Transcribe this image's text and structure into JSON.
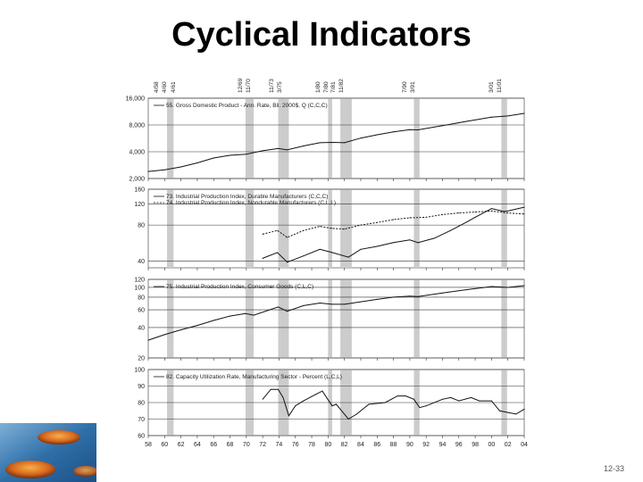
{
  "slide": {
    "title": "Cyclical Indicators",
    "number": "12-33"
  },
  "colors": {
    "recession_shade": "#cccccc",
    "line": "#111111",
    "grid": "#333333",
    "panel_bg": "#ffffff"
  },
  "recession_labels": [
    {
      "peak": "4/58",
      "trough": ""
    },
    {
      "peak": "4/60",
      "trough": "4/61"
    },
    {
      "peak": "12/69",
      "trough": "11/70"
    },
    {
      "peak": "11/73",
      "trough": "3/75"
    },
    {
      "peak": "1/80",
      "trough": "7/80"
    },
    {
      "peak": "7/81",
      "trough": "11/82"
    },
    {
      "peak": "7/90",
      "trough": "3/91"
    },
    {
      "peak": "3/01",
      "trough": "11/01"
    }
  ],
  "chart_data": [
    {
      "type": "line",
      "title": "55. Gross Domestic Product - Ann. Rate, Bil. 2000$, Q (C,C,C)",
      "y_scale": "log",
      "ylim": [
        2000,
        16000
      ],
      "yticks": [
        "16,000",
        "8,000",
        "4,000",
        "2,000"
      ],
      "ytick_values": [
        16000,
        8000,
        4000,
        2000
      ],
      "xlim": [
        1958,
        2004
      ],
      "recessions": [
        [
          1960.3,
          1961.1
        ],
        [
          1969.9,
          1970.9
        ],
        [
          1973.9,
          1975.2
        ],
        [
          1980.0,
          1980.5
        ],
        [
          1981.5,
          1982.9
        ],
        [
          1990.5,
          1991.2
        ],
        [
          2001.2,
          2001.9
        ]
      ],
      "series": [
        {
          "name": "55. Gross Domestic Product - Ann. Rate, Bil. 2000$, Q (C,C,C)",
          "x": [
            1958,
            1960,
            1962,
            1964,
            1966,
            1968,
            1970,
            1972,
            1973.9,
            1975,
            1977,
            1979,
            1980.5,
            1982,
            1984,
            1986,
            1988,
            1990,
            1991,
            1994,
            1997,
            2000,
            2002,
            2004
          ],
          "y": [
            2400,
            2500,
            2700,
            3000,
            3400,
            3650,
            3750,
            4100,
            4350,
            4200,
            4650,
            5050,
            5100,
            5050,
            5700,
            6200,
            6700,
            7100,
            7050,
            7850,
            8800,
            9800,
            10100,
            10800
          ]
        }
      ]
    },
    {
      "type": "line",
      "title": "Industrial Production Index, Durable / Nondurable Manufacturers",
      "y_scale": "log",
      "ylim": [
        35,
        160
      ],
      "yticks": [
        "160",
        "120",
        "80",
        "40"
      ],
      "ytick_values": [
        160,
        120,
        80,
        40
      ],
      "xlim": [
        1958,
        2004
      ],
      "recessions": [
        [
          1960.3,
          1961.1
        ],
        [
          1969.9,
          1970.9
        ],
        [
          1973.9,
          1975.2
        ],
        [
          1980.0,
          1980.5
        ],
        [
          1981.5,
          1982.9
        ],
        [
          1990.5,
          1991.2
        ],
        [
          2001.2,
          2001.9
        ]
      ],
      "series": [
        {
          "name": "73. Industrial Production Index, Durable Manufacturers (C,C,C)",
          "x": [
            1972,
            1973.8,
            1975,
            1977,
            1979,
            1980.5,
            1982.5,
            1984,
            1986,
            1988,
            1990,
            1991,
            1993,
            1995,
            1997,
            1998,
            2000,
            2001.5,
            2002,
            2004
          ],
          "y": [
            42,
            47,
            39,
            44,
            50,
            47,
            43,
            50,
            53,
            57,
            60,
            57,
            62,
            72,
            85,
            93,
            110,
            104,
            105,
            113
          ]
        },
        {
          "name": "74. Industrial Production Index, Nondurable Manufacturers (C,L,L)",
          "x": [
            1972,
            1973.8,
            1975,
            1977,
            1979,
            1980.5,
            1982,
            1984,
            1986,
            1988,
            1990,
            1992,
            1994,
            1996,
            1998,
            2000,
            2002,
            2004
          ],
          "y": [
            67,
            72,
            63,
            72,
            78,
            75,
            74,
            80,
            84,
            89,
            92,
            93,
            98,
            101,
            103,
            105,
            101,
            99
          ]
        }
      ]
    },
    {
      "type": "line",
      "title": "75. Industrial Production Index, Consumer Goods (C,L,C)",
      "y_scale": "log",
      "ylim": [
        20,
        120
      ],
      "yticks": [
        "120",
        "100",
        "80",
        "60",
        "40",
        "20"
      ],
      "ytick_values": [
        120,
        100,
        80,
        60,
        40,
        20
      ],
      "xlim": [
        1958,
        2004
      ],
      "recessions": [
        [
          1960.3,
          1961.1
        ],
        [
          1969.9,
          1970.9
        ],
        [
          1973.9,
          1975.2
        ],
        [
          1980.0,
          1980.5
        ],
        [
          1981.5,
          1982.9
        ],
        [
          1990.5,
          1991.2
        ],
        [
          2001.2,
          2001.9
        ]
      ],
      "series": [
        {
          "name": "75. Industrial Production Index, Consumer Goods (C,L,C)",
          "x": [
            1958,
            1960,
            1962,
            1964,
            1966,
            1968,
            1969.9,
            1970.9,
            1973.9,
            1975,
            1977,
            1979,
            1980.5,
            1982,
            1984,
            1986,
            1988,
            1990,
            1991,
            1994,
            1997,
            2000,
            2002,
            2004
          ],
          "y": [
            30,
            34,
            38,
            42,
            47,
            52,
            55,
            53,
            64,
            58,
            66,
            70,
            68,
            68,
            72,
            76,
            80,
            82,
            81,
            88,
            95,
            102,
            100,
            104
          ]
        }
      ]
    },
    {
      "type": "line",
      "title": "82. Capacity Utilization Rate, Manufacturing Sector - Percent (L,C,L)",
      "y_scale": "linear",
      "ylim": [
        60,
        100
      ],
      "yticks": [
        "100",
        "90",
        "80",
        "70",
        "60"
      ],
      "ytick_values": [
        100,
        90,
        80,
        70,
        60
      ],
      "xlim": [
        1958,
        2004
      ],
      "xticks": [
        "58",
        "60",
        "62",
        "64",
        "66",
        "68",
        "70",
        "72",
        "74",
        "76",
        "78",
        "80",
        "82",
        "84",
        "86",
        "88",
        "90",
        "92",
        "94",
        "96",
        "98",
        "00",
        "02",
        "04"
      ],
      "recessions": [
        [
          1960.3,
          1961.1
        ],
        [
          1969.9,
          1970.9
        ],
        [
          1973.9,
          1975.2
        ],
        [
          1980.0,
          1980.5
        ],
        [
          1981.5,
          1982.9
        ],
        [
          1990.5,
          1991.2
        ],
        [
          2001.2,
          2001.9
        ]
      ],
      "series": [
        {
          "name": "82. Capacity Utilization Rate, Manufacturing Sector - Percent (L,C,L)",
          "x": [
            1972,
            1973,
            1973.9,
            1974.5,
            1975.2,
            1976,
            1977,
            1978.5,
            1979.3,
            1980.5,
            1981,
            1982.5,
            1983.5,
            1985,
            1987,
            1988.5,
            1989.5,
            1990.5,
            1991.2,
            1992,
            1994,
            1995,
            1996,
            1997.5,
            1998.5,
            2000,
            2001,
            2002,
            2003,
            2004
          ],
          "y": [
            82,
            88,
            88,
            83,
            72,
            78,
            81,
            85,
            87,
            78,
            79,
            70,
            73,
            79,
            80,
            84,
            84,
            82,
            77,
            78,
            82,
            83,
            81,
            83,
            81,
            81,
            75,
            74,
            73,
            76
          ]
        }
      ]
    }
  ]
}
